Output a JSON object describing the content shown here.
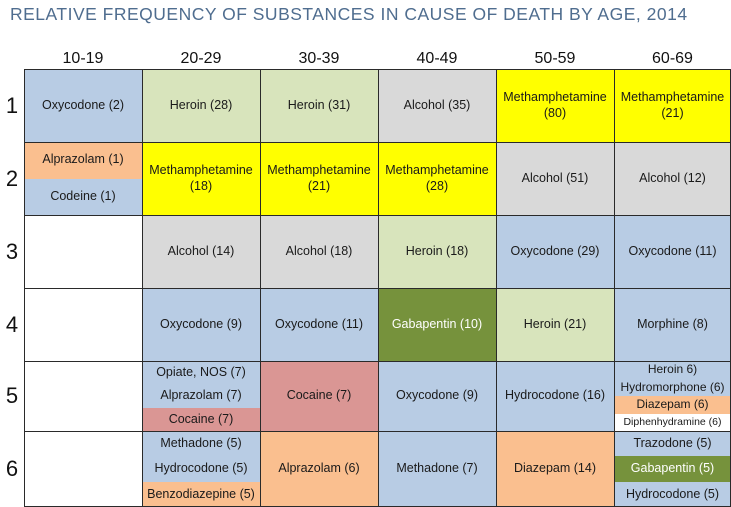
{
  "chart_data": {
    "type": "table",
    "title": "RELATIVE FREQUENCY OF SUBSTANCES IN CAUSE OF DEATH BY AGE, 2014",
    "columns": [
      "10-19",
      "20-29",
      "30-39",
      "40-49",
      "50-59",
      "60-69"
    ],
    "rows": [
      "1",
      "2",
      "3",
      "4",
      "5",
      "6"
    ],
    "colors": {
      "blue": "#b8cce4",
      "green": "#d8e4bc",
      "gray": "#d9d9d9",
      "yellow": "#ffff00",
      "orange": "#fabf8f",
      "red": "#da9694",
      "darkgreen": "#76923c",
      "white": "#ffffff"
    },
    "cells": [
      [
        {
          "entries": [
            {
              "text": "Oxycodone (2)",
              "color": "blue"
            }
          ]
        },
        {
          "entries": [
            {
              "text": "Heroin (28)",
              "color": "green"
            }
          ]
        },
        {
          "entries": [
            {
              "text": "Heroin (31)",
              "color": "green"
            }
          ]
        },
        {
          "entries": [
            {
              "text": "Alcohol (35)",
              "color": "gray"
            }
          ]
        },
        {
          "entries": [
            {
              "text": "Methamphetamine (80)",
              "color": "yellow"
            }
          ]
        },
        {
          "entries": [
            {
              "text": "Methamphetamine (21)",
              "color": "yellow"
            }
          ]
        }
      ],
      [
        {
          "entries": [
            {
              "text": "Alprazolam (1)",
              "color": "orange"
            },
            {
              "text": "Codeine (1)",
              "color": "blue"
            }
          ]
        },
        {
          "entries": [
            {
              "text": "Methamphetamine (18)",
              "color": "yellow"
            }
          ]
        },
        {
          "entries": [
            {
              "text": "Methamphetamine (21)",
              "color": "yellow"
            }
          ]
        },
        {
          "entries": [
            {
              "text": "Methamphetamine (28)",
              "color": "yellow"
            }
          ]
        },
        {
          "entries": [
            {
              "text": "Alcohol (51)",
              "color": "gray"
            }
          ]
        },
        {
          "entries": [
            {
              "text": "Alcohol (12)",
              "color": "gray"
            }
          ]
        }
      ],
      [
        {
          "entries": [
            {
              "text": "",
              "color": "white"
            }
          ]
        },
        {
          "entries": [
            {
              "text": "Alcohol (14)",
              "color": "gray"
            }
          ]
        },
        {
          "entries": [
            {
              "text": "Alcohol (18)",
              "color": "gray"
            }
          ]
        },
        {
          "entries": [
            {
              "text": "Heroin (18)",
              "color": "green"
            }
          ]
        },
        {
          "entries": [
            {
              "text": "Oxycodone (29)",
              "color": "blue"
            }
          ]
        },
        {
          "entries": [
            {
              "text": "Oxycodone (11)",
              "color": "blue"
            }
          ]
        }
      ],
      [
        {
          "entries": [
            {
              "text": "",
              "color": "white"
            }
          ]
        },
        {
          "entries": [
            {
              "text": "Oxycodone (9)",
              "color": "blue"
            }
          ]
        },
        {
          "entries": [
            {
              "text": "Oxycodone (11)",
              "color": "blue"
            }
          ]
        },
        {
          "entries": [
            {
              "text": "Gabapentin (10)",
              "color": "darkgreen"
            }
          ]
        },
        {
          "entries": [
            {
              "text": "Heroin (21)",
              "color": "green"
            }
          ]
        },
        {
          "entries": [
            {
              "text": "Morphine (8)",
              "color": "blue"
            }
          ]
        }
      ],
      [
        {
          "entries": [
            {
              "text": "",
              "color": "white"
            }
          ]
        },
        {
          "entries": [
            {
              "text": "Opiate, NOS (7)",
              "color": "blue"
            },
            {
              "text": "Alprazolam (7)",
              "color": "blue"
            },
            {
              "text": "Cocaine (7)",
              "color": "red"
            }
          ]
        },
        {
          "entries": [
            {
              "text": "Cocaine (7)",
              "color": "red"
            }
          ]
        },
        {
          "entries": [
            {
              "text": "Oxycodone (9)",
              "color": "blue"
            }
          ]
        },
        {
          "entries": [
            {
              "text": "Hydrocodone (16)",
              "color": "blue"
            }
          ]
        },
        {
          "entries": [
            {
              "text": "Heroin 6)",
              "color": "blue"
            },
            {
              "text": "Hydromorphone (6)",
              "color": "blue"
            },
            {
              "text": "Diazepam (6)",
              "color": "orange"
            },
            {
              "text": "Diphenhydramine (6)",
              "color": "white"
            }
          ]
        }
      ],
      [
        {
          "entries": [
            {
              "text": "",
              "color": "white"
            }
          ]
        },
        {
          "entries": [
            {
              "text": "Methadone (5)",
              "color": "blue"
            },
            {
              "text": "Hydrocodone (5)",
              "color": "blue"
            },
            {
              "text": "Benzodiazepine (5)",
              "color": "orange"
            }
          ]
        },
        {
          "entries": [
            {
              "text": "Alprazolam (6)",
              "color": "orange"
            }
          ]
        },
        {
          "entries": [
            {
              "text": "Methadone (7)",
              "color": "blue"
            }
          ]
        },
        {
          "entries": [
            {
              "text": "Diazepam (14)",
              "color": "orange"
            }
          ]
        },
        {
          "entries": [
            {
              "text": "Trazodone (5)",
              "color": "blue"
            },
            {
              "text": "Gabapentin (5)",
              "color": "darkgreen"
            },
            {
              "text": "Hydrocodone (5)",
              "color": "blue"
            }
          ]
        }
      ]
    ]
  }
}
